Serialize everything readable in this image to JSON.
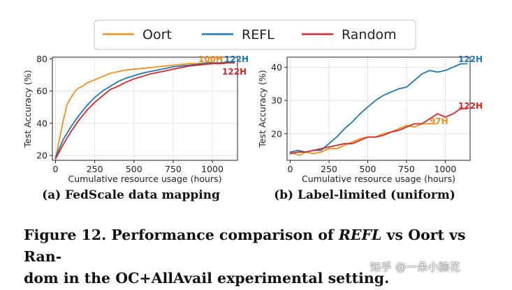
{
  "legend": {
    "items": [
      {
        "name": "Oort",
        "color": "#f28e1c"
      },
      {
        "name": "REFL",
        "color": "#1f77b4"
      },
      {
        "name": "Random",
        "color": "#d62728"
      }
    ],
    "placement": "top-center"
  },
  "chart_data": [
    {
      "type": "line",
      "subtitle": "(a) FedScale data mapping",
      "xlabel": "Cumulative resource usage (hours)",
      "ylabel": "Test Accuracy (%)",
      "xlim": [
        -20,
        1160
      ],
      "ylim": [
        17,
        81
      ],
      "xticks": [
        0,
        250,
        500,
        750,
        1000
      ],
      "yticks": [
        20,
        40,
        60,
        80
      ],
      "grid": true,
      "series": [
        {
          "name": "Oort",
          "color": "#f28e1c",
          "x": [
            0,
            25,
            50,
            75,
            100,
            125,
            150,
            175,
            200,
            250,
            300,
            350,
            400,
            450,
            500,
            550,
            600,
            650,
            700,
            750,
            800,
            850,
            900,
            950,
            990
          ],
          "y": [
            18,
            30,
            42,
            52,
            56,
            60,
            62,
            63,
            65,
            67,
            69,
            71,
            72,
            73,
            73.5,
            74,
            74.5,
            75,
            75.5,
            76,
            76.5,
            77,
            77,
            77.5,
            78
          ]
        },
        {
          "name": "REFL",
          "color": "#1f77b4",
          "x": [
            0,
            50,
            100,
            150,
            200,
            250,
            300,
            350,
            400,
            450,
            500,
            550,
            600,
            650,
            700,
            750,
            800,
            850,
            900,
            950,
            1000,
            1050,
            1100,
            1140
          ],
          "y": [
            19,
            30,
            38,
            45,
            51,
            56,
            60,
            63,
            66,
            68,
            69.5,
            71,
            72,
            73,
            74,
            75,
            75.5,
            76,
            76.5,
            77,
            77.5,
            77.5,
            78,
            78
          ]
        },
        {
          "name": "Random",
          "color": "#d62728",
          "x": [
            0,
            50,
            100,
            150,
            200,
            250,
            300,
            350,
            400,
            450,
            500,
            550,
            600,
            650,
            700,
            750,
            800,
            850,
            900,
            950,
            1000,
            1050,
            1100,
            1140
          ],
          "y": [
            18,
            27,
            35,
            42,
            48,
            53,
            57,
            61,
            63,
            65.5,
            67.5,
            69,
            70.5,
            71.5,
            72.5,
            73.5,
            74.5,
            75.5,
            76,
            76.5,
            77,
            77,
            77.5,
            77.5
          ]
        }
      ],
      "annotations": [
        {
          "text": "100H",
          "color": "#f28e1c"
        },
        {
          "text": "122H",
          "color": "#1f77b4"
        },
        {
          "text": "122H",
          "color": "#d62728"
        }
      ]
    },
    {
      "type": "line",
      "subtitle": "(b) Label-limited (uniform)",
      "xlabel": "Cumulative resource usage (hours)",
      "ylabel": "Test Accuracy (%)",
      "xlim": [
        -20,
        1160
      ],
      "ylim": [
        12,
        43
      ],
      "xticks": [
        0,
        250,
        500,
        750,
        1000
      ],
      "yticks": [
        20,
        30,
        40
      ],
      "grid": true,
      "series": [
        {
          "name": "Oort",
          "color": "#f28e1c",
          "x": [
            0,
            30,
            60,
            100,
            150,
            200,
            250,
            300,
            350,
            400,
            450,
            500,
            550,
            600,
            650,
            700,
            750,
            800,
            850,
            900,
            950
          ],
          "y": [
            14.5,
            14,
            13.5,
            14.5,
            14,
            14.5,
            15.5,
            15.5,
            16.5,
            17.5,
            18.5,
            19,
            19,
            20,
            20.5,
            21.5,
            22.5,
            22,
            23,
            23,
            23
          ]
        },
        {
          "name": "REFL",
          "color": "#1f77b4",
          "x": [
            0,
            50,
            100,
            150,
            200,
            250,
            300,
            350,
            400,
            450,
            500,
            550,
            600,
            650,
            700,
            750,
            800,
            850,
            900,
            950,
            1000,
            1050,
            1100,
            1140
          ],
          "y": [
            14.5,
            15,
            14.5,
            15,
            15,
            17,
            19,
            21.5,
            23.5,
            26,
            28,
            30,
            31.5,
            32.5,
            33.5,
            34,
            36,
            38,
            39,
            38.5,
            39,
            40,
            41,
            41
          ]
        },
        {
          "name": "Random",
          "color": "#d62728",
          "x": [
            0,
            50,
            100,
            150,
            200,
            250,
            300,
            350,
            400,
            450,
            500,
            550,
            600,
            650,
            700,
            750,
            800,
            850,
            900,
            950,
            1000,
            1050,
            1100,
            1140
          ],
          "y": [
            14,
            14.5,
            14.5,
            15,
            15.5,
            16,
            16.5,
            17,
            17,
            18,
            19,
            19,
            19.5,
            20.5,
            21,
            22,
            23,
            23,
            24.5,
            26,
            25,
            26,
            27.5,
            27.5
          ]
        }
      ],
      "annotations": [
        {
          "text": "122H",
          "color": "#1f77b4"
        },
        {
          "text": "122H",
          "color": "#d62728"
        },
        {
          "text": "97H",
          "color": "#f28e1c"
        }
      ]
    }
  ],
  "caption": {
    "part1": "Figure 12. Performance comparison of ",
    "italic": "REFL",
    "part2": " vs Oort vs Ran-",
    "line2": "dom in the OC+AllAvail experimental setting."
  },
  "watermark": "知乎 @一朵小脑花"
}
